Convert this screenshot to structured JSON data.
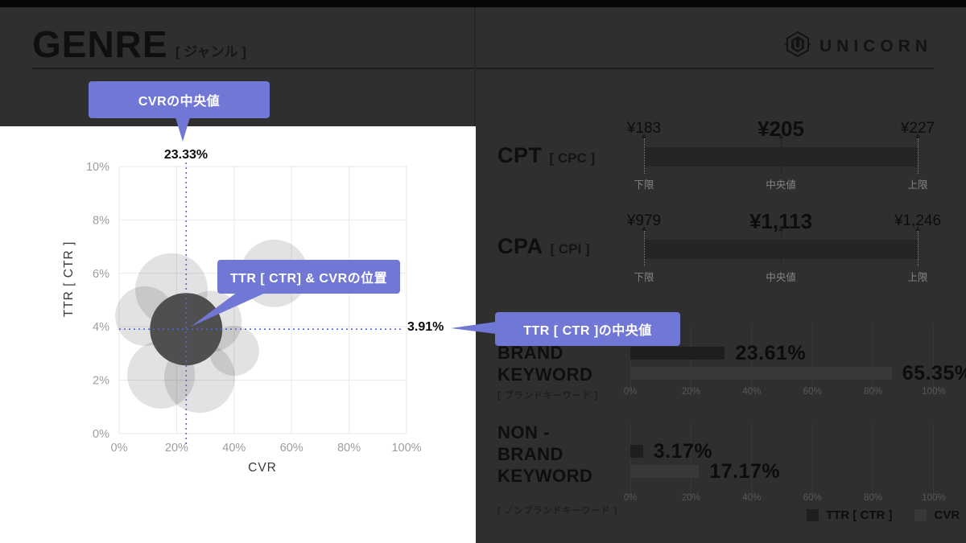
{
  "header": {
    "title": "GENRE",
    "subtitle": "[ ジャンル ]",
    "brand": "UNICORN"
  },
  "callouts": {
    "cvr_median": "CVRの中央値",
    "position": "TTR [ CTR] & CVRの位置",
    "ttr_median": "TTR [ CTR ]の中央値"
  },
  "colors": {
    "bg": "#2f2f2f",
    "panel": "#ffffff",
    "accent": "#7177d4",
    "median_line": "#5661d6",
    "dark_bubble": "#4f4f4f",
    "light_bubble": "rgba(0,0,0,0.115)",
    "range_bar": "#252525",
    "ttr_bar": "#1e1e1e",
    "cvr_bar": "#383838"
  },
  "chart_data": [
    {
      "type": "scatter",
      "xlabel": "CVR",
      "ylabel": "TTR [ CTR ]",
      "xlim": [
        0,
        100
      ],
      "ylim": [
        0,
        10
      ],
      "x_ticks": [
        "0%",
        "20%",
        "40%",
        "60%",
        "80%",
        "100%"
      ],
      "y_ticks": [
        "0%",
        "2%",
        "4%",
        "6%",
        "8%",
        "10%"
      ],
      "grid": true,
      "median": {
        "cvr": 23.33,
        "ttr": 3.91,
        "cvr_label": "23.33%",
        "ttr_label": "3.91%"
      },
      "points": [
        {
          "cvr": 18.2,
          "ttr": 5.4,
          "r": 45
        },
        {
          "cvr": 54.0,
          "ttr": 6.0,
          "r": 42
        },
        {
          "cvr": 9.0,
          "ttr": 4.4,
          "r": 37
        },
        {
          "cvr": 40.0,
          "ttr": 3.1,
          "r": 31
        },
        {
          "cvr": 14.6,
          "ttr": 2.2,
          "r": 42
        },
        {
          "cvr": 28.0,
          "ttr": 2.1,
          "r": 44
        },
        {
          "cvr": 32.0,
          "ttr": 4.2,
          "r": 38
        },
        {
          "cvr": 23.33,
          "ttr": 3.91,
          "r": 45,
          "median": true
        }
      ]
    },
    {
      "type": "range",
      "metric": "CPT",
      "metric_sub": "[ CPC ]",
      "lower": "¥183",
      "median": "¥205",
      "upper": "¥227",
      "lower_label": "下限",
      "median_label": "中央値",
      "upper_label": "上限"
    },
    {
      "type": "range",
      "metric": "CPA",
      "metric_sub": "[ CPI ]",
      "lower": "¥979",
      "median": "¥1,113",
      "upper": "¥1,246",
      "lower_label": "下限",
      "median_label": "中央値",
      "upper_label": "上限"
    },
    {
      "type": "bar",
      "title_lines": [
        "BRAND",
        "KEYWORD"
      ],
      "sub": "[ ブランドキーワード ]",
      "x_ticks": [
        "0%",
        "20%",
        "40%",
        "60%",
        "80%",
        "100%"
      ],
      "xlim": [
        0,
        100
      ],
      "series": [
        {
          "name": "TTR [ CTR ]",
          "value": 23.61,
          "label": "23.61%"
        },
        {
          "name": "CVR",
          "value": 65.35,
          "label": "65.35%"
        }
      ]
    },
    {
      "type": "bar",
      "title_lines": [
        "NON -",
        "BRAND",
        "KEYWORD"
      ],
      "sub": "[ ノンブランドキーワード ]",
      "x_ticks": [
        "0%",
        "20%",
        "40%",
        "60%",
        "80%",
        "100%"
      ],
      "xlim": [
        0,
        100
      ],
      "series": [
        {
          "name": "TTR [ CTR ]",
          "value": 3.17,
          "label": "3.17%"
        },
        {
          "name": "CVR",
          "value": 17.17,
          "label": "17.17%"
        }
      ]
    }
  ],
  "legend": [
    {
      "name": "TTR [ CTR ]",
      "swatch": "#1e1e1e"
    },
    {
      "name": "CVR",
      "swatch": "#383838"
    }
  ]
}
